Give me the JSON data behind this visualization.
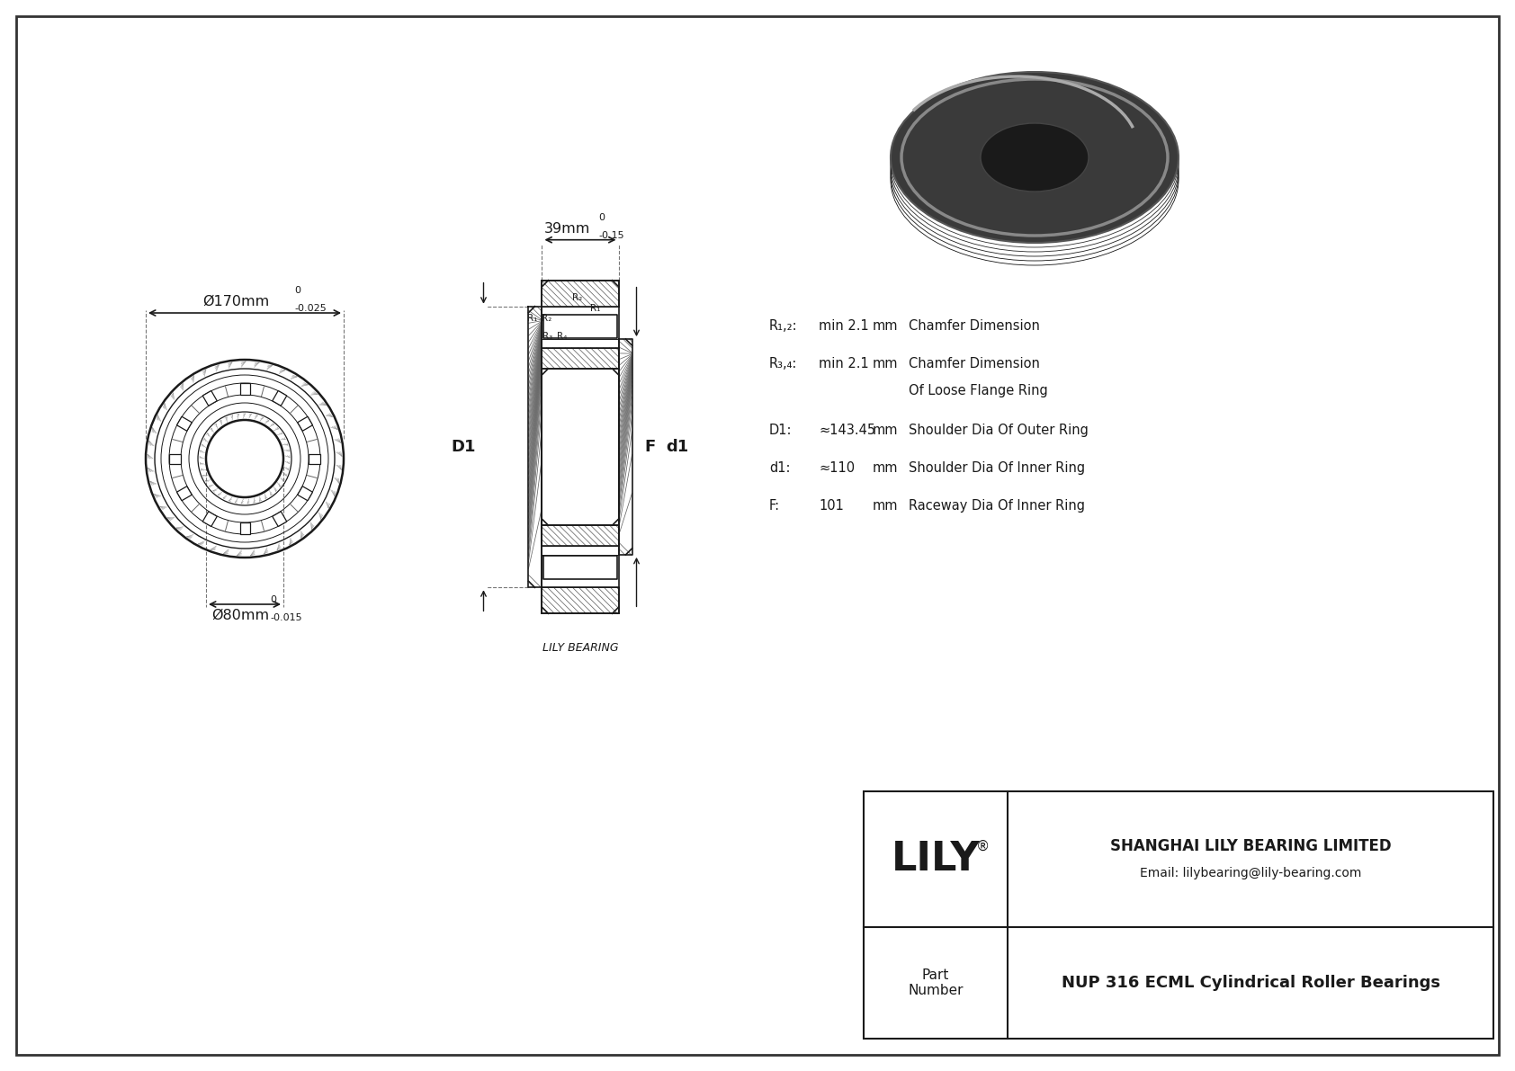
{
  "bg_color": "#ffffff",
  "line_color": "#1a1a1a",
  "company": "SHANGHAI LILY BEARING LIMITED",
  "email": "Email: lilybearing@lily-bearing.com",
  "part_label": "Part\nNumber",
  "part_number": "NUP 316 ECML Cylindrical Roller Bearings",
  "lily_text": "LILY",
  "outer_dia_label": "Ø170mm",
  "outer_dia_tol_top": "0",
  "outer_dia_tol_bot": "-0.025",
  "inner_dia_label": "Ø80mm",
  "inner_dia_tol_top": "0",
  "inner_dia_tol_bot": "-0.015",
  "width_label": "39mm",
  "width_tol_top": "0",
  "width_tol_bot": "-0.15",
  "D1_label": "D1",
  "d1_label": "d1",
  "F_label": "F",
  "R12_label": "R₁,₂:",
  "R34_label": "R₃,₄:",
  "R12_val": "min 2.1",
  "R_unit": "mm",
  "R12_desc": "Chamfer Dimension",
  "R34_val": "min 2.1",
  "R34_desc": "Chamfer Dimension",
  "R34_desc2": "Of Loose Flange Ring",
  "D1_spec": "D1:",
  "D1_val": "≈143.45",
  "D1_unit": "mm",
  "D1_desc": "Shoulder Dia Of Outer Ring",
  "d1_spec": "d1:",
  "d1_val": "≈110",
  "d1_unit": "mm",
  "d1_desc": "Shoulder Dia Of Inner Ring",
  "F_spec": "F:",
  "F_val": "101",
  "F_unit": "mm",
  "F_desc": "Raceway Dia Of Inner Ring",
  "lily_bearing_text": "LILY BEARING",
  "border_color": "#333333"
}
